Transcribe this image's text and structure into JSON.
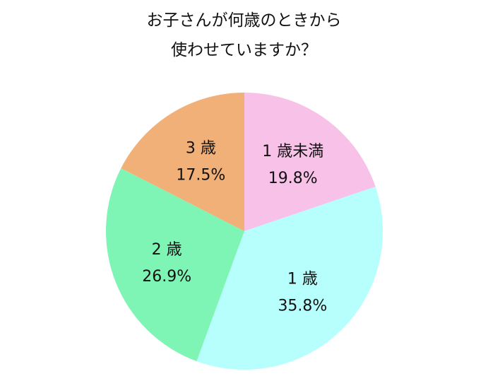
{
  "chart_data": {
    "type": "pie",
    "title": [
      "お子さんが何歳のときから",
      "使わせていますか？"
    ],
    "slices": [
      {
        "label": "1 歳未満",
        "value": 19.8,
        "value_label": "19.8%",
        "color": "#f7c1e8"
      },
      {
        "label": "1 歳",
        "value": 35.8,
        "value_label": "35.8%",
        "color": "#b6fffd"
      },
      {
        "label": "2 歳",
        "value": 26.9,
        "value_label": "26.9%",
        "color": "#7ff5b5"
      },
      {
        "label": "3 歳",
        "value": 17.5,
        "value_label": "17.5%",
        "color": "#f0b077"
      }
    ],
    "start": "12 o'clock",
    "direction": "clockwise",
    "legend": "none",
    "labels_inside_slices": true
  }
}
